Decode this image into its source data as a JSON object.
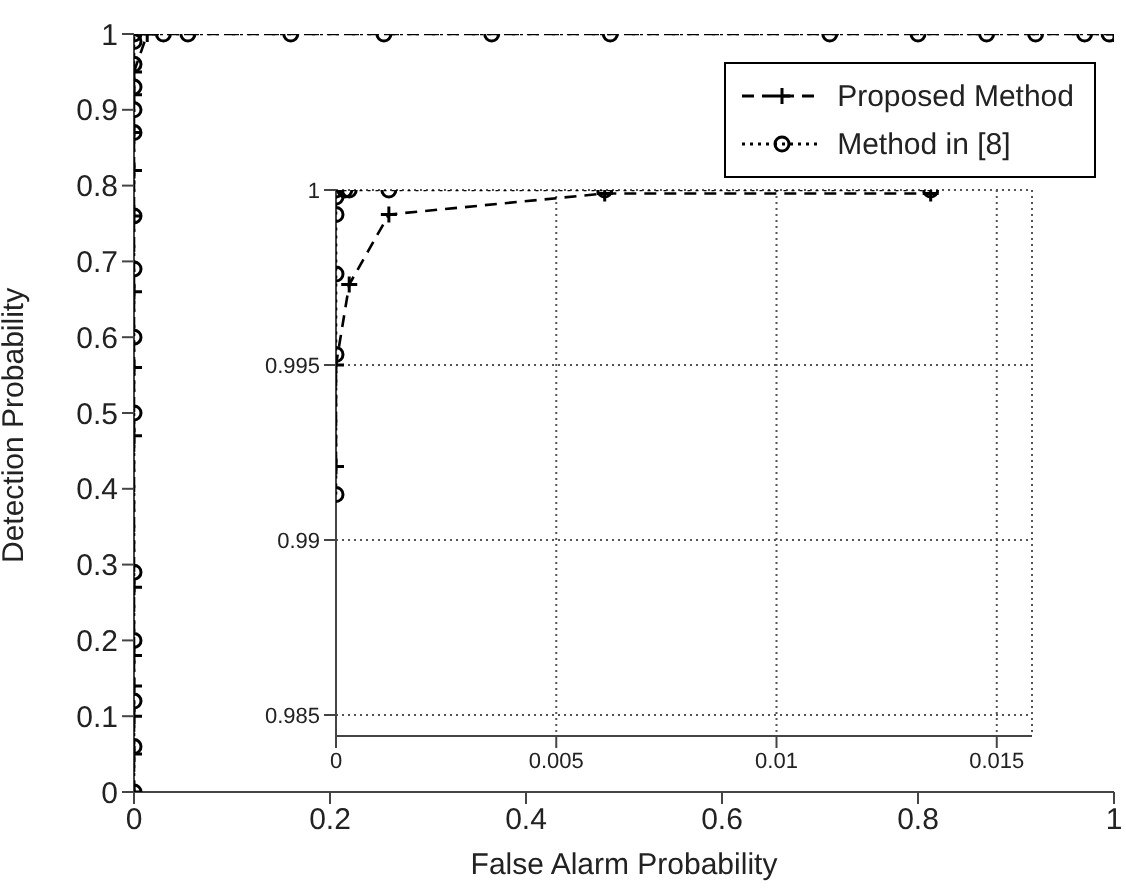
{
  "chart_data": [
    {
      "type": "line",
      "xlabel": "False Alarm Probability",
      "ylabel": "Detection Probability",
      "xlim": [
        0,
        1
      ],
      "ylim": [
        0,
        1
      ],
      "xticks": [
        0,
        0.2,
        0.4,
        0.6,
        0.8,
        1
      ],
      "yticks": [
        0,
        0.1,
        0.2,
        0.3,
        0.4,
        0.5,
        0.6,
        0.7,
        0.8,
        0.9,
        1
      ],
      "grid": false,
      "legend": "top right",
      "series": [
        {
          "name": "Proposed Method",
          "color": "#000000",
          "marker": "cross",
          "line_style": "dashed",
          "x": [
            0,
            0,
            0,
            0,
            0,
            0,
            0,
            0,
            0,
            0,
            0,
            0,
            0,
            0,
            0.0135,
            1
          ],
          "values": [
            0,
            0.05,
            0.1,
            0.14,
            0.18,
            0.27,
            0.47,
            0.56,
            0.66,
            0.76,
            0.82,
            0.87,
            0.92,
            0.95,
            1,
            1
          ]
        },
        {
          "name": "Method in [8]",
          "color": "#000000",
          "marker": "circle",
          "line_style": "dotted",
          "x": [
            0,
            0,
            0,
            0,
            0,
            0,
            0,
            0,
            0,
            0,
            0,
            0,
            0,
            0,
            0,
            0.03,
            0.055,
            0.16,
            0.255,
            0.365,
            0.486,
            0.71,
            0.8,
            0.87,
            0.92,
            0.97,
            0.995
          ],
          "values": [
            0,
            0.06,
            0.12,
            0.2,
            0.29,
            0.5,
            0.6,
            0.69,
            0.76,
            0.87,
            0.9,
            0.93,
            0.96,
            0.99,
            1,
            1,
            1,
            1,
            1,
            1,
            1,
            1,
            1,
            1,
            1,
            1,
            1
          ]
        }
      ]
    },
    {
      "type": "line",
      "xlim": [
        0,
        0.0158
      ],
      "ylim": [
        0.9844,
        1
      ],
      "xticks": [
        0,
        0.005,
        0.01,
        0.015
      ],
      "yticks": [
        0.985,
        0.99,
        0.995,
        1
      ],
      "grid": true,
      "series": [
        {
          "color": "#000000",
          "marker": "cross",
          "line_style": "dashed",
          "x": [
            0,
            0,
            0.0003,
            0.0012,
            0.0061,
            0.0135
          ],
          "values": [
            0.9921,
            0.995,
            0.9973,
            0.9993,
            0.9999,
            0.9999
          ]
        },
        {
          "color": "#000000",
          "marker": "circle",
          "line_style": "dotted",
          "x": [
            0,
            0,
            0,
            0,
            0,
            0,
            0.0002,
            0.0003,
            0.0012,
            0.0061,
            0.0135
          ],
          "values": [
            0.9913,
            0.9953,
            0.9976,
            0.9993,
            0.9998,
            1,
            1,
            1,
            1,
            1,
            1
          ]
        }
      ]
    }
  ]
}
